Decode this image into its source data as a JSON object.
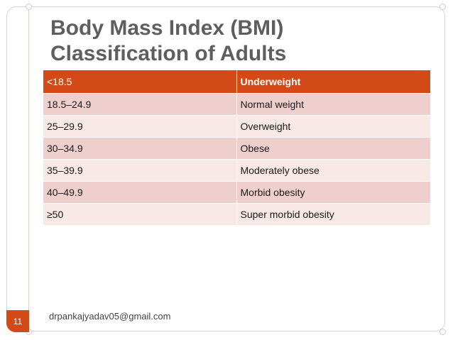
{
  "slide": {
    "title_line1": "Body Mass Index (BMI)",
    "title_line2": "Classification of Adults",
    "page_number": "11",
    "footer_email": "drpankajyadav05@gmail.com"
  },
  "table": {
    "rows": [
      {
        "range": "<18.5",
        "category": "Underweight"
      },
      {
        "range": "18.5–24.9",
        "category": "Normal weight"
      },
      {
        "range": "25–29.9",
        "category": "Overweight"
      },
      {
        "range": "30–34.9",
        "category": "Obese"
      },
      {
        "range": "35–39.9",
        "category": "Moderately obese"
      },
      {
        "range": "40–49.9",
        "category": "Morbid obesity"
      },
      {
        "range": "≥50",
        "category": "Super morbid obesity"
      }
    ]
  },
  "colors": {
    "accent": "#d24a18",
    "row_dark": "#efcfcd",
    "row_light": "#f8e8e6",
    "title": "#5e5e5e"
  }
}
